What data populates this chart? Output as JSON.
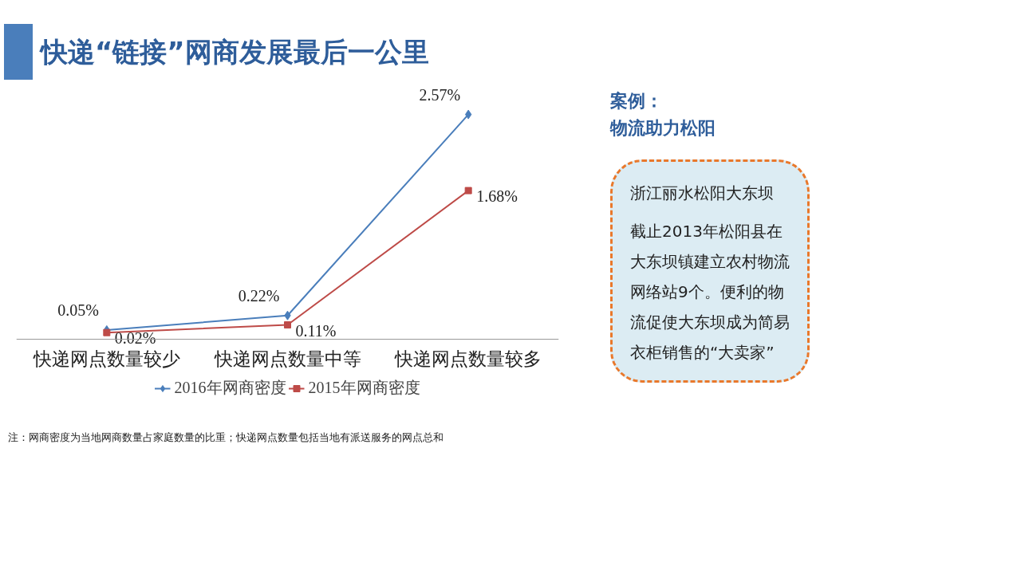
{
  "chart_data": {
    "type": "line",
    "title": "快递“链接”网商发展最后一公里",
    "categories": [
      "快递网点数量较少",
      "快递网点数量中等",
      "快递网点数量较多"
    ],
    "series": [
      {
        "name": "2016年网商密度",
        "color": "#4a7ebb",
        "marker": "diamond",
        "values": [
          0.05,
          0.22,
          2.57
        ],
        "value_labels": [
          "0.05%",
          "0.22%",
          "2.57%"
        ]
      },
      {
        "name": "2015年网商密度",
        "color": "#be4b48",
        "marker": "square",
        "values": [
          0.02,
          0.11,
          1.68
        ],
        "value_labels": [
          "0.02%",
          "0.11%",
          "1.68%"
        ]
      }
    ],
    "legend": "bottom",
    "grid": false,
    "line_style": "solid",
    "annotations": [
      "案例：",
      "物流助力松阳",
      "浙江丽水松阳大东坝",
      "截止2013年松阳县在大东坝镇建立农村物流网络站9个。便利的物流促使大东坝成为简易衣柜销售的“大卖家”",
      "注：网商密度为当地网商数量占家庭数量的比重；快递网点数量包括当地有派送服务的网点总和"
    ]
  }
}
